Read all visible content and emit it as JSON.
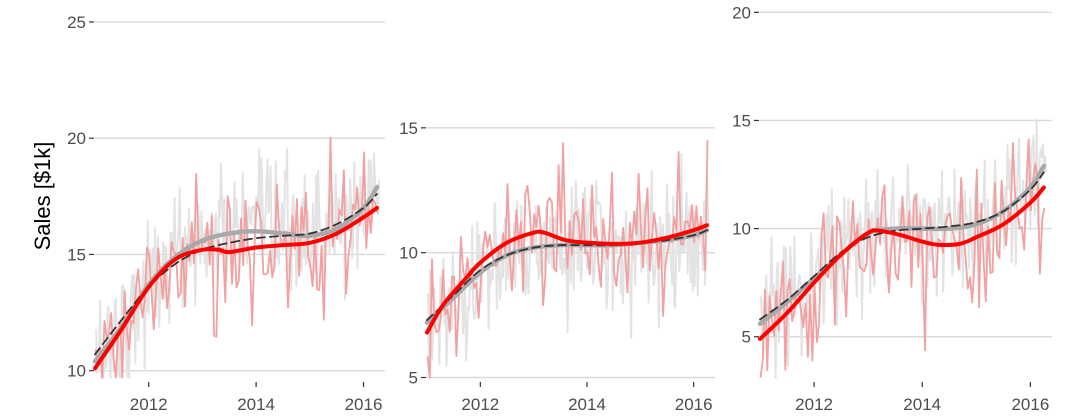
{
  "figure": {
    "ylabel": "Sales [$1k]"
  },
  "colors": {
    "raw_gray": "#e3e3e3",
    "raw_red": "#f2a0a0",
    "smooth_red": "#ff0000",
    "smooth_gray": "#a9a9a9",
    "trend_dashed": "#333333",
    "grid": "#d9d9d9",
    "tick_text": "#4d4d4d"
  },
  "chart_data": [
    {
      "type": "line",
      "title": "",
      "xlabel": "",
      "ylabel": "Sales [$1k]",
      "xlim": [
        2011.0,
        2016.4
      ],
      "ylim": [
        9.6,
        25.6
      ],
      "x_ticks": [
        2012,
        2014,
        2016
      ],
      "y_ticks": [
        10,
        15,
        20,
        25
      ],
      "grid": "horizontal",
      "legend": "none",
      "series": [
        {
          "role": "smooth_gray",
          "x": [
            2011.0,
            2011.5,
            2012.0,
            2012.5,
            2013.0,
            2013.5,
            2014.0,
            2014.5,
            2015.0,
            2015.5,
            2016.0,
            2016.25
          ],
          "y": [
            10.4,
            11.9,
            13.7,
            14.9,
            15.6,
            15.9,
            16.0,
            15.9,
            15.8,
            16.1,
            17.0,
            17.9
          ]
        },
        {
          "role": "trend_dashed",
          "x": [
            2011.0,
            2011.5,
            2012.0,
            2012.5,
            2013.0,
            2013.5,
            2014.0,
            2014.5,
            2015.0,
            2015.5,
            2016.0,
            2016.25
          ],
          "y": [
            10.7,
            12.2,
            13.6,
            14.6,
            15.2,
            15.5,
            15.7,
            15.8,
            15.9,
            16.3,
            17.0,
            17.6
          ]
        },
        {
          "role": "smooth_red",
          "x": [
            2011.0,
            2011.5,
            2012.0,
            2012.5,
            2013.0,
            2013.3,
            2013.5,
            2014.0,
            2014.5,
            2015.0,
            2015.5,
            2016.0,
            2016.25
          ],
          "y": [
            10.1,
            11.8,
            13.6,
            14.8,
            15.2,
            15.2,
            15.1,
            15.3,
            15.4,
            15.5,
            15.9,
            16.6,
            17.0
          ]
        }
      ]
    },
    {
      "type": "line",
      "title": "",
      "xlabel": "",
      "ylabel": "",
      "xlim": [
        2011.0,
        2016.4
      ],
      "ylim": [
        4.9,
        19.8
      ],
      "x_ticks": [
        2012,
        2014,
        2016
      ],
      "y_ticks": [
        5,
        10,
        15
      ],
      "grid": "horizontal",
      "legend": "none",
      "series": [
        {
          "role": "smooth_gray",
          "x": [
            2011.0,
            2011.5,
            2012.0,
            2012.5,
            2013.0,
            2013.5,
            2014.0,
            2014.5,
            2015.0,
            2015.5,
            2016.0,
            2016.25
          ],
          "y": [
            7.2,
            8.2,
            9.2,
            9.9,
            10.2,
            10.3,
            10.3,
            10.3,
            10.4,
            10.5,
            10.7,
            10.9
          ]
        },
        {
          "role": "trend_dashed",
          "x": [
            2011.0,
            2011.5,
            2012.0,
            2012.5,
            2013.0,
            2013.5,
            2014.0,
            2014.5,
            2015.0,
            2015.5,
            2016.0,
            2016.25
          ],
          "y": [
            7.3,
            8.3,
            9.3,
            9.9,
            10.2,
            10.3,
            10.3,
            10.3,
            10.4,
            10.5,
            10.7,
            10.9
          ]
        },
        {
          "role": "smooth_red",
          "x": [
            2011.0,
            2011.3,
            2011.7,
            2012.0,
            2012.5,
            2013.0,
            2013.2,
            2013.6,
            2014.0,
            2014.5,
            2015.0,
            2015.5,
            2016.0,
            2016.25
          ],
          "y": [
            6.8,
            7.9,
            8.9,
            9.6,
            10.4,
            10.8,
            10.8,
            10.5,
            10.4,
            10.35,
            10.4,
            10.6,
            10.9,
            11.1
          ]
        }
      ]
    },
    {
      "type": "line",
      "title": "",
      "xlabel": "",
      "ylabel": "",
      "xlim": [
        2011.0,
        2016.4
      ],
      "ylim": [
        3.0,
        20.2
      ],
      "x_ticks": [
        2012,
        2014,
        2016
      ],
      "y_ticks": [
        5,
        10,
        15,
        20
      ],
      "grid": "horizontal",
      "legend": "none",
      "series": [
        {
          "role": "smooth_gray",
          "x": [
            2011.0,
            2011.5,
            2012.0,
            2012.5,
            2013.0,
            2013.5,
            2014.0,
            2014.5,
            2015.0,
            2015.5,
            2016.0,
            2016.25
          ],
          "y": [
            5.6,
            6.6,
            7.7,
            8.8,
            9.8,
            10.0,
            10.0,
            10.0,
            10.2,
            10.8,
            11.9,
            12.9
          ]
        },
        {
          "role": "trend_dashed",
          "x": [
            2011.0,
            2011.5,
            2012.0,
            2012.5,
            2013.0,
            2013.5,
            2014.0,
            2014.5,
            2015.0,
            2015.5,
            2016.0,
            2016.25
          ],
          "y": [
            5.8,
            6.7,
            7.8,
            8.9,
            9.6,
            9.9,
            10.0,
            10.1,
            10.3,
            10.8,
            11.8,
            12.6
          ]
        },
        {
          "role": "smooth_red",
          "x": [
            2011.0,
            2011.5,
            2012.0,
            2012.5,
            2013.0,
            2013.2,
            2013.6,
            2014.0,
            2014.3,
            2014.7,
            2015.0,
            2015.5,
            2016.0,
            2016.25
          ],
          "y": [
            4.9,
            6.1,
            7.5,
            8.8,
            9.8,
            9.9,
            9.7,
            9.4,
            9.25,
            9.3,
            9.6,
            10.2,
            11.2,
            11.9
          ]
        }
      ]
    }
  ]
}
